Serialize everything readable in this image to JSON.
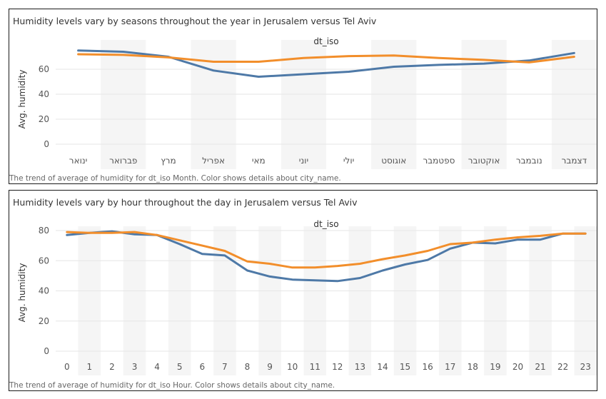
{
  "colors": {
    "jerusalem": "#4e79a7",
    "tel_aviv": "#f28e2b",
    "grid": "#e6e6e6",
    "band": "#f5f5f5"
  },
  "chart_data": [
    {
      "type": "line",
      "title": "Humidity levels vary by seasons throughout the year in Jerusalem versus Tel Aviv",
      "header": "dt_iso",
      "ylabel": "Avg. humidity",
      "xlabel": "",
      "ylim": [
        0,
        80
      ],
      "yticks": [
        0,
        20,
        40,
        60
      ],
      "grid": true,
      "categories": [
        "ינואר",
        "פברואר",
        "מרץ",
        "אפריל",
        "מאי",
        "יוני",
        "יולי",
        "אוגוסט",
        "ספטמבר",
        "אוקטובר",
        "נובמבר",
        "דצמבר"
      ],
      "series": [
        {
          "color": "#4e79a7",
          "values": [
            75,
            74,
            70,
            59,
            54,
            56,
            58,
            62,
            63.5,
            64.5,
            67,
            73
          ]
        },
        {
          "color": "#f28e2b",
          "values": [
            72,
            71.5,
            69.5,
            66,
            66,
            69,
            70.5,
            71,
            69,
            67.5,
            65.5,
            70
          ]
        }
      ],
      "footnote": "The trend of average of humidity for dt_iso Month.  Color shows details about city_name."
    },
    {
      "type": "line",
      "title": "Humidity levels vary by hour throughout the day in Jerusalem versus Tel Aviv",
      "header": "dt_iso",
      "ylabel": "Avg. humidity",
      "xlabel": "",
      "ylim": [
        0,
        80
      ],
      "yticks": [
        0,
        20,
        40,
        60,
        80
      ],
      "grid": true,
      "categories": [
        "0",
        "1",
        "2",
        "3",
        "4",
        "5",
        "6",
        "7",
        "8",
        "9",
        "10",
        "11",
        "12",
        "13",
        "14",
        "15",
        "16",
        "17",
        "18",
        "19",
        "20",
        "21",
        "22",
        "23"
      ],
      "series": [
        {
          "color": "#4e79a7",
          "values": [
            77,
            78.5,
            79.5,
            77.5,
            77,
            71,
            64.5,
            63.5,
            53.5,
            49.5,
            47.5,
            47,
            46.5,
            48.5,
            53.5,
            57.5,
            60.5,
            68,
            72,
            71.5,
            74,
            74,
            78,
            78
          ]
        },
        {
          "color": "#f28e2b",
          "values": [
            79,
            78.5,
            78.5,
            79,
            77,
            73.5,
            70,
            66.5,
            59.5,
            58,
            55.5,
            55.5,
            56.5,
            58,
            61,
            63.5,
            66.5,
            71,
            72,
            74,
            75.5,
            76.5,
            78,
            78
          ]
        }
      ],
      "footnote": "The trend of average of humidity for dt_iso Hour.  Color shows details about city_name."
    }
  ]
}
